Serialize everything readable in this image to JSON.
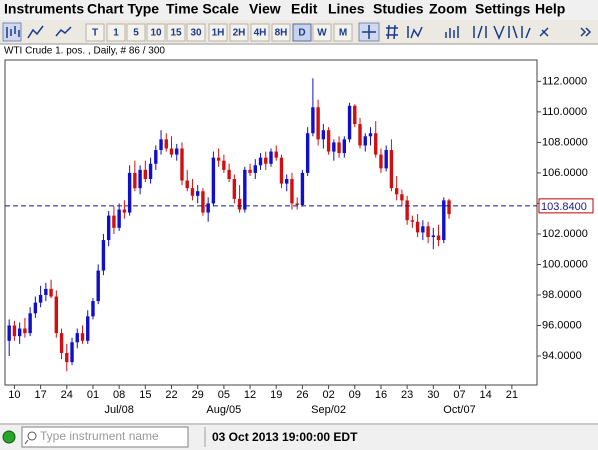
{
  "menu": [
    "Instruments",
    "Chart Type",
    "Time Scale",
    "View",
    "Edit",
    "Lines",
    "Studies",
    "Zoom",
    "Settings",
    "Help"
  ],
  "toolbar": [
    "T",
    "1",
    "5",
    "10",
    "15",
    "30",
    "1H",
    "2H",
    "4H",
    "8H",
    "D",
    "W",
    "M"
  ],
  "chart_data": {
    "type": "candlestick",
    "title": "WTI Crude 1. pos. , Daily, # 86 / 300",
    "up_color": "#1010c8",
    "down_color": "#d01010",
    "open": [
      95.0,
      96.0,
      95.3,
      95.8,
      95.5,
      96.8,
      97.5,
      98.0,
      98.4,
      97.9,
      95.5,
      94.2,
      93.6,
      94.9,
      95.5,
      95.0,
      96.6,
      97.6,
      99.6,
      101.6,
      103.2,
      102.4,
      103.6,
      103.4,
      106.0,
      105.0,
      106.2,
      105.6,
      106.6,
      107.5,
      108.2,
      107.6,
      107.2,
      107.6,
      105.5,
      105.0,
      104.5,
      104.8,
      103.4,
      104.0,
      107.0,
      106.8,
      106.2,
      105.6,
      104.3,
      103.6,
      106.2,
      106.0,
      106.5,
      107.0,
      106.6,
      107.4,
      107.0,
      105.3,
      105.6,
      104.0,
      103.9,
      106.0,
      108.6,
      110.3,
      108.2,
      108.8,
      107.4,
      108.0,
      107.3,
      108.2,
      110.4,
      109.2,
      107.8,
      108.4,
      108.6,
      107.2,
      106.3,
      107.5,
      105.0,
      104.6,
      104.2,
      102.9,
      102.8,
      102.1,
      102.5,
      101.8,
      101.9,
      101.6,
      104.2
    ],
    "high": [
      96.4,
      96.3,
      96.2,
      96.5,
      97.2,
      97.9,
      98.6,
      98.8,
      99.0,
      98.3,
      95.8,
      94.8,
      95.2,
      95.8,
      96.0,
      97.0,
      97.8,
      100.0,
      102.0,
      103.5,
      103.8,
      104.0,
      104.2,
      106.5,
      106.8,
      106.5,
      106.8,
      107.0,
      107.8,
      108.8,
      108.6,
      108.4,
      107.9,
      108.0,
      106.2,
      105.6,
      105.2,
      105.0,
      104.4,
      107.4,
      107.6,
      107.2,
      106.6,
      105.9,
      105.2,
      106.4,
      106.6,
      106.9,
      107.3,
      107.4,
      107.6,
      107.8,
      107.2,
      105.9,
      106.0,
      104.4,
      106.2,
      109.0,
      112.2,
      110.8,
      109.2,
      109.0,
      108.2,
      108.4,
      108.4,
      110.6,
      110.5,
      109.6,
      108.6,
      109.0,
      109.4,
      107.6,
      107.8,
      108.2,
      105.8,
      104.9,
      104.5,
      103.2,
      103.3,
      102.9,
      102.8,
      102.4,
      102.6,
      104.4,
      104.3
    ],
    "low": [
      94.0,
      95.0,
      94.8,
      95.2,
      95.3,
      96.5,
      97.2,
      97.6,
      97.8,
      95.2,
      93.8,
      93.0,
      93.4,
      94.5,
      94.8,
      94.8,
      96.4,
      97.4,
      99.3,
      101.2,
      102.0,
      102.2,
      103.0,
      103.2,
      104.8,
      104.6,
      105.4,
      105.3,
      106.2,
      107.2,
      107.4,
      107.0,
      106.8,
      105.2,
      104.8,
      104.2,
      104.0,
      103.2,
      102.8,
      103.8,
      106.4,
      106.0,
      105.4,
      104.0,
      103.4,
      103.4,
      105.8,
      105.6,
      106.2,
      106.2,
      106.4,
      106.8,
      105.0,
      104.8,
      103.6,
      103.6,
      103.8,
      105.8,
      108.4,
      107.8,
      107.6,
      107.2,
      106.8,
      107.0,
      107.0,
      108.0,
      109.0,
      107.6,
      107.4,
      107.8,
      107.0,
      106.0,
      106.1,
      104.8,
      104.2,
      103.8,
      102.6,
      102.4,
      101.8,
      101.6,
      101.4,
      101.0,
      101.2,
      101.4,
      103.0
    ],
    "close": [
      96.0,
      95.3,
      95.8,
      95.5,
      96.8,
      97.5,
      98.0,
      98.4,
      97.9,
      95.5,
      94.2,
      93.6,
      94.9,
      95.5,
      95.0,
      96.6,
      97.6,
      99.6,
      101.6,
      103.2,
      102.4,
      103.6,
      103.4,
      106.0,
      105.0,
      106.2,
      105.6,
      106.6,
      107.5,
      108.2,
      107.6,
      107.2,
      107.6,
      105.5,
      105.0,
      104.5,
      104.8,
      103.4,
      104.0,
      107.0,
      106.8,
      106.2,
      105.6,
      104.3,
      103.6,
      106.2,
      106.0,
      106.5,
      107.0,
      106.6,
      107.4,
      107.0,
      105.3,
      105.6,
      104.0,
      103.9,
      106.0,
      108.6,
      110.3,
      108.2,
      108.8,
      107.4,
      108.0,
      107.3,
      108.2,
      110.4,
      109.2,
      107.8,
      108.4,
      108.6,
      107.2,
      106.3,
      107.5,
      105.0,
      104.6,
      104.2,
      102.9,
      102.8,
      102.1,
      102.5,
      101.8,
      101.9,
      101.6,
      104.2,
      103.3
    ],
    "current_price": {
      "value": 103.84,
      "label": "103.8400"
    },
    "ylim": [
      92.1,
      113.4
    ],
    "yticks": [
      {
        "value": 94,
        "label": "94.0000"
      },
      {
        "value": 96,
        "label": "96.0000"
      },
      {
        "value": 98,
        "label": "98.0000"
      },
      {
        "value": 100,
        "label": "100.0000"
      },
      {
        "value": 102,
        "label": "102.0000"
      },
      {
        "value": 104,
        "label": "104.0000"
      },
      {
        "value": 106,
        "label": "106.0000"
      },
      {
        "value": 108,
        "label": "108.0000"
      },
      {
        "value": 110,
        "label": "110.0000"
      },
      {
        "value": 112,
        "label": "112.0000"
      }
    ],
    "xlim": [
      -0.8,
      100.8
    ],
    "xticks": [
      {
        "value": 1,
        "label": "10"
      },
      {
        "value": 6,
        "label": "17"
      },
      {
        "value": 11,
        "label": "24"
      },
      {
        "value": 16,
        "label": "01"
      },
      {
        "value": 21,
        "label": "08"
      },
      {
        "value": 26,
        "label": "15"
      },
      {
        "value": 31,
        "label": "22"
      },
      {
        "value": 36,
        "label": "29"
      },
      {
        "value": 41,
        "label": "05"
      },
      {
        "value": 46,
        "label": "12"
      },
      {
        "value": 51,
        "label": "19"
      },
      {
        "value": 56,
        "label": "26"
      },
      {
        "value": 61,
        "label": "02"
      },
      {
        "value": 66,
        "label": "09"
      },
      {
        "value": 71,
        "label": "16"
      },
      {
        "value": 76,
        "label": "23"
      },
      {
        "value": 81,
        "label": "30"
      },
      {
        "value": 86,
        "label": "07"
      },
      {
        "value": 91,
        "label": "14"
      },
      {
        "value": 96,
        "label": "21"
      }
    ],
    "month_ticks": [
      {
        "value": 21,
        "label": "Jul/08"
      },
      {
        "value": 41,
        "label": "Aug/05"
      },
      {
        "value": 61,
        "label": "Sep/02"
      },
      {
        "value": 86,
        "label": "Oct/07"
      }
    ]
  },
  "status": {
    "placeholder": "Type instrument name",
    "time": "03 Oct 2013 19:00:00 EDT"
  }
}
